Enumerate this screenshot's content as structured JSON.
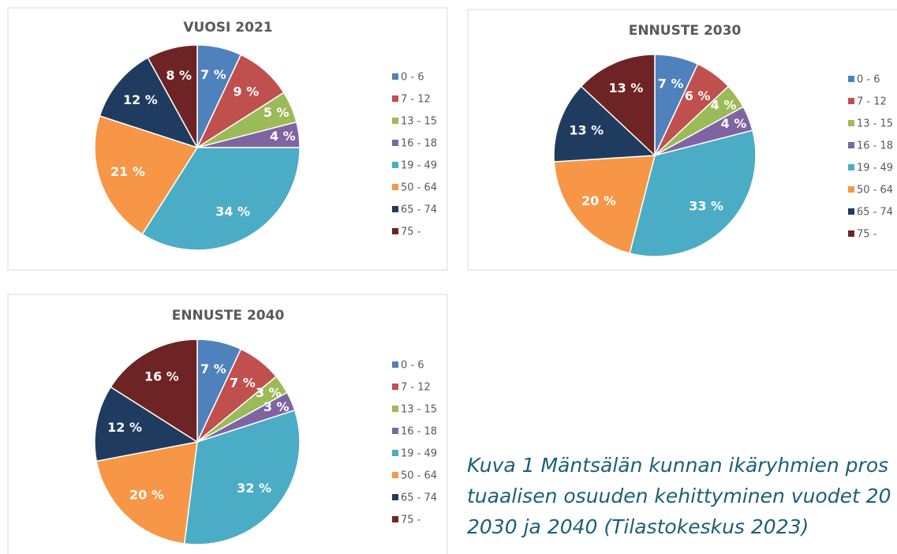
{
  "chart_data": [
    {
      "type": "pie",
      "title": "VUOSI 2021",
      "categories": [
        "0 - 6",
        "7 - 12",
        "13 - 15",
        "16 - 18",
        "19 - 49",
        "50 - 64",
        "65 - 74",
        "75 -"
      ],
      "values": [
        7,
        9,
        5,
        4,
        34,
        21,
        12,
        8
      ],
      "value_labels": [
        "7 %",
        "9 %",
        "5 %",
        "4 %",
        "34 %",
        "21 %",
        "12 %",
        "8 %"
      ],
      "colors": [
        "#4f81bd",
        "#c0504d",
        "#9bbb59",
        "#8064a2",
        "#4bacc6",
        "#f79646",
        "#1f3b60",
        "#6e2424"
      ]
    },
    {
      "type": "pie",
      "title": "ENNUSTE 2030",
      "categories": [
        "0 - 6",
        "7 - 12",
        "13 - 15",
        "16 - 18",
        "19 - 49",
        "50 - 64",
        "65 - 74",
        "75 -"
      ],
      "values": [
        7,
        6,
        4,
        4,
        33,
        20,
        13,
        13
      ],
      "value_labels": [
        "7 %",
        "6 %",
        "4 %",
        "4 %",
        "33 %",
        "20 %",
        "13 %",
        "13 %"
      ],
      "colors": [
        "#4f81bd",
        "#c0504d",
        "#9bbb59",
        "#8064a2",
        "#4bacc6",
        "#f79646",
        "#1f3b60",
        "#6e2424"
      ]
    },
    {
      "type": "pie",
      "title": "ENNUSTE 2040",
      "categories": [
        "0 - 6",
        "7 - 12",
        "13 - 15",
        "16 - 18",
        "19 - 49",
        "50 - 64",
        "65 - 74",
        "75 -"
      ],
      "values": [
        7,
        7,
        3,
        3,
        32,
        20,
        12,
        16
      ],
      "value_labels": [
        "7 %",
        "7 %",
        "3 %",
        "3 %",
        "32 %",
        "20 %",
        "12 %",
        "16 %"
      ],
      "colors": [
        "#4f81bd",
        "#c0504d",
        "#9bbb59",
        "#8064a2",
        "#4bacc6",
        "#f79646",
        "#1f3b60",
        "#6e2424"
      ]
    }
  ],
  "caption": [
    "Kuva 1 Mäntsälän kunnan ikäryhmien pros",
    "tuaalisen osuuden kehittyminen vuodet 20",
    "2030 ja 2040 (Tilastokeskus 2023)"
  ]
}
